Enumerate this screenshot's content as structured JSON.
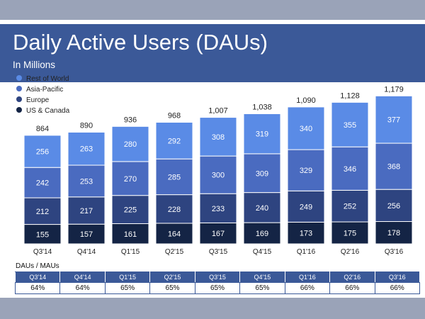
{
  "header": {
    "title": "Daily Active Users (DAUs)",
    "subtitle": "In Millions"
  },
  "colors": {
    "header_bg": "#3b5998",
    "rest_of_world": "#5a8be6",
    "asia_pacific": "#4a6bc0",
    "europe": "#2e4480",
    "us_canada": "#142445",
    "background": "#9aa3b8"
  },
  "chart_data": {
    "type": "bar",
    "stacked": true,
    "title": "Daily Active Users (DAUs)",
    "subtitle": "In Millions",
    "categories": [
      "Q3'14",
      "Q4'14",
      "Q1'15",
      "Q2'15",
      "Q3'15",
      "Q4'15",
      "Q1'16",
      "Q2'16",
      "Q3'16"
    ],
    "series": [
      {
        "name": "US & Canada",
        "color": "#142445",
        "values": [
          155,
          157,
          161,
          164,
          167,
          169,
          173,
          175,
          178
        ]
      },
      {
        "name": "Europe",
        "color": "#2e4480",
        "values": [
          212,
          217,
          225,
          228,
          233,
          240,
          249,
          252,
          256
        ]
      },
      {
        "name": "Asia-Pacific",
        "color": "#4a6bc0",
        "values": [
          242,
          253,
          270,
          285,
          300,
          309,
          329,
          346,
          368
        ]
      },
      {
        "name": "Rest of World",
        "color": "#5a8be6",
        "values": [
          256,
          263,
          280,
          292,
          308,
          319,
          340,
          355,
          377
        ]
      }
    ],
    "totals": [
      "864",
      "890",
      "936",
      "968",
      "1,007",
      "1,038",
      "1,090",
      "1,128",
      "1,179"
    ],
    "legend": {
      "placement": "top-left",
      "order": [
        "Rest of World",
        "Asia-Pacific",
        "Europe",
        "US & Canada"
      ]
    },
    "xlabel": "",
    "ylabel": "",
    "grid": false
  },
  "table": {
    "title": "DAUs / MAUs",
    "quarters": [
      "Q3'14",
      "Q4'14",
      "Q1'15",
      "Q2'15",
      "Q3'15",
      "Q4'15",
      "Q1'16",
      "Q2'16",
      "Q3'16"
    ],
    "percents": [
      "64%",
      "64%",
      "65%",
      "65%",
      "65%",
      "65%",
      "66%",
      "66%",
      "66%"
    ]
  }
}
